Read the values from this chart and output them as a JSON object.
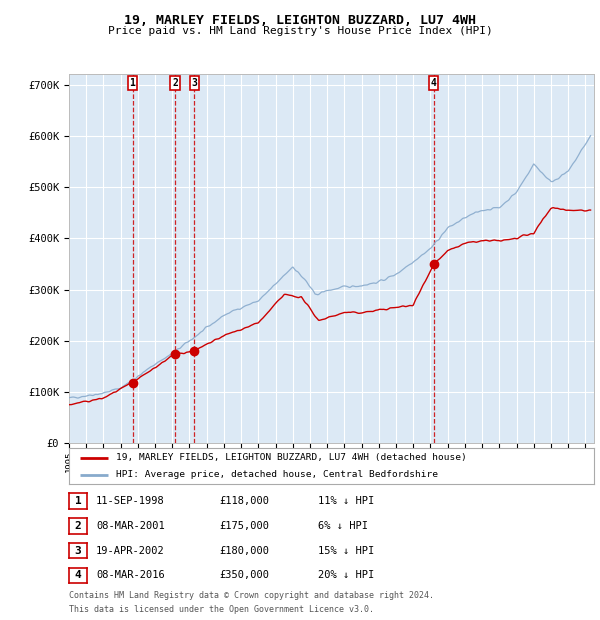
{
  "title": "19, MARLEY FIELDS, LEIGHTON BUZZARD, LU7 4WH",
  "subtitle": "Price paid vs. HM Land Registry's House Price Index (HPI)",
  "ylim": [
    0,
    720000
  ],
  "xlim_start": 1995.0,
  "xlim_end": 2025.5,
  "background_color": "#dce9f5",
  "grid_color": "#ffffff",
  "red_line_color": "#cc0000",
  "blue_line_color": "#88aacc",
  "sale_marker_color": "#cc0000",
  "vline_color": "#cc0000",
  "transactions": [
    {
      "label": "1",
      "date_num": 1998.69,
      "price": 118000,
      "year_str": "11-SEP-1998",
      "price_str": "£118,000",
      "hpi_str": "11% ↓ HPI"
    },
    {
      "label": "2",
      "date_num": 2001.18,
      "price": 175000,
      "year_str": "08-MAR-2001",
      "price_str": "£175,000",
      "hpi_str": "6% ↓ HPI"
    },
    {
      "label": "3",
      "date_num": 2002.29,
      "price": 180000,
      "year_str": "19-APR-2002",
      "price_str": "£180,000",
      "hpi_str": "15% ↓ HPI"
    },
    {
      "label": "4",
      "date_num": 2016.18,
      "price": 350000,
      "year_str": "08-MAR-2016",
      "price_str": "£350,000",
      "hpi_str": "20% ↓ HPI"
    }
  ],
  "legend_entries": [
    "19, MARLEY FIELDS, LEIGHTON BUZZARD, LU7 4WH (detached house)",
    "HPI: Average price, detached house, Central Bedfordshire"
  ],
  "footer_lines": [
    "Contains HM Land Registry data © Crown copyright and database right 2024.",
    "This data is licensed under the Open Government Licence v3.0."
  ],
  "ytick_labels": [
    "£0",
    "£100K",
    "£200K",
    "£300K",
    "£400K",
    "£500K",
    "£600K",
    "£700K"
  ],
  "ytick_values": [
    0,
    100000,
    200000,
    300000,
    400000,
    500000,
    600000,
    700000
  ],
  "xtick_years": [
    1995,
    1996,
    1997,
    1998,
    1999,
    2000,
    2001,
    2002,
    2003,
    2004,
    2005,
    2006,
    2007,
    2008,
    2009,
    2010,
    2011,
    2012,
    2013,
    2014,
    2015,
    2016,
    2017,
    2018,
    2019,
    2020,
    2021,
    2022,
    2023,
    2024,
    2025
  ]
}
